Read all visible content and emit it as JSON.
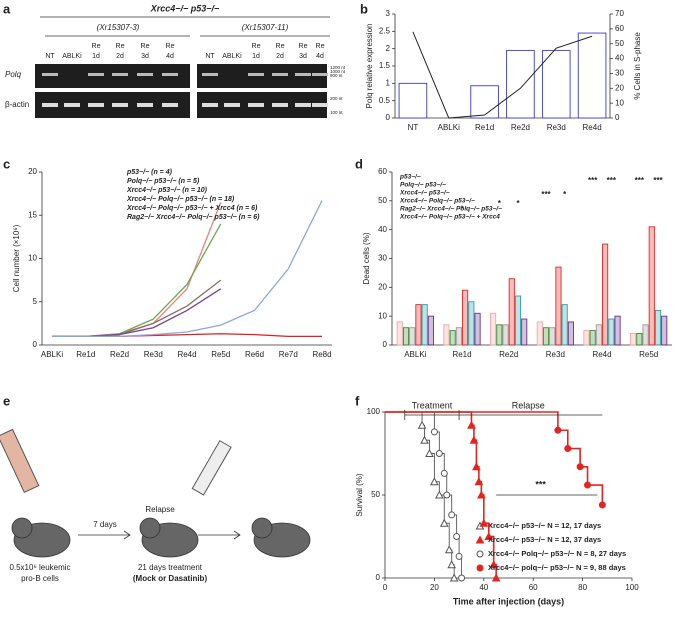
{
  "panel_labels": [
    "a",
    "b",
    "c",
    "d",
    "e",
    "f"
  ],
  "gel": {
    "title": "Xrcc4−/− p53−/−",
    "groups": [
      "(Xr15307-3)",
      "(Xr15307-11)"
    ],
    "lanes": [
      [
        "NT"
      ],
      [
        "ABLKi"
      ],
      [
        "Re",
        "1d"
      ],
      [
        "Re",
        "2d"
      ],
      [
        "Re",
        "3d"
      ],
      [
        "Re",
        "4d"
      ],
      [
        "NT"
      ],
      [
        "ABLKi"
      ],
      [
        "Re",
        "1d"
      ],
      [
        "Re",
        "2d"
      ],
      [
        "Re",
        "3d"
      ],
      [
        "Re",
        "4d"
      ]
    ],
    "rows": [
      "Polq",
      "β-actin"
    ],
    "markers": [
      "1200 nt",
      "1000 nt",
      "900 nt",
      "200 nt",
      "100 nt"
    ]
  },
  "diagram": {
    "texts": [
      "7 days",
      "Relapse",
      "0.5x10⁶ leukemic",
      "pro-B cells",
      "21 days treatment",
      "(Mock or Dasatinib)"
    ]
  },
  "chart_data": [
    {
      "type": "bar",
      "categories": [
        "NT",
        "ABLKi",
        "Re1d",
        "Re2d",
        "Re3d",
        "Re4d"
      ],
      "ylabel": "Polq relative expression",
      "y2label": "% Cells in S-phase",
      "ylim": [
        0,
        3
      ],
      "yticks": [
        0,
        0.5,
        1,
        1.5,
        2,
        2.5,
        3
      ],
      "y2lim": [
        0,
        70
      ],
      "y2ticks": [
        0,
        10,
        20,
        30,
        40,
        50,
        60,
        70
      ],
      "series": [
        {
          "color": "#3a3ad0",
          "values": [
            1.0,
            0,
            0.93,
            1.95,
            1.95,
            2.45
          ]
        },
        {
          "color": "#222222",
          "axis": "y2",
          "values": [
            58,
            0,
            2,
            20,
            47,
            55
          ]
        }
      ]
    },
    {
      "type": "line",
      "categories": [
        "ABLKi",
        "Re1d",
        "Re2d",
        "Re3d",
        "Re4d",
        "Re5d",
        "Re6d",
        "Re7d",
        "Re8d"
      ],
      "ylabel": "Cell number (×10⁶)",
      "ylim": [
        0,
        20
      ],
      "yticks": [
        0,
        5,
        10,
        15,
        20
      ],
      "series": [
        {
          "name": "p53−/− (n = 4)",
          "color": "#f08080",
          "values": [
            1,
            1,
            1.3,
            2.5,
            6.5,
            16.5,
            null,
            null,
            null
          ]
        },
        {
          "name": "Polq−/− p53−/− (n = 5)",
          "color": "#6aa84f",
          "values": [
            1,
            1,
            1.3,
            3,
            7,
            14,
            null,
            null,
            null
          ]
        },
        {
          "name": "Xrcc4−/− p53−/− (n = 10)",
          "color": "#8b6f5e",
          "values": [
            1,
            1,
            1.2,
            2.5,
            4.5,
            7.5,
            null,
            null,
            null
          ]
        },
        {
          "name": "Xrcc4−/− Polq−/− p53−/− (n = 18)",
          "color": "#e02020",
          "values": [
            1,
            1,
            1,
            1.1,
            1.2,
            1.3,
            1.2,
            1.0,
            1.0
          ]
        },
        {
          "name": "Xrcc4−/− Polq−/− p53−/− + Xrcc4 (n = 6)",
          "color": "#7b3f98",
          "values": [
            1,
            1,
            1.2,
            2,
            4,
            6.5,
            null,
            null,
            null
          ]
        },
        {
          "name": "Rag2−/− Xrcc4−/− Polq−/− p53−/− (n = 6)",
          "color": "#8aa8e0",
          "values": [
            1,
            1,
            1,
            1.2,
            1.5,
            2.3,
            4,
            8.8,
            16.7
          ]
        }
      ]
    },
    {
      "type": "bar",
      "categories": [
        "ABLKi",
        "Re1d",
        "Re2d",
        "Re3d",
        "Re4d",
        "Re5d"
      ],
      "ylabel": "Dead cells (%)",
      "ylim": [
        0,
        60
      ],
      "yticks": [
        0,
        10,
        20,
        30,
        40,
        50,
        60
      ],
      "annotations": [
        "*",
        "*",
        "*",
        "***",
        "*",
        "***",
        "***",
        "***",
        "***"
      ],
      "series": [
        {
          "name": "p53−/−",
          "color": "#f4a6a6",
          "values": [
            8,
            7,
            11,
            8,
            5,
            4
          ]
        },
        {
          "name": "Polq−/− p53−/−",
          "color": "#3a8a2a",
          "values": [
            6,
            5,
            7,
            6,
            5,
            4
          ]
        },
        {
          "name": "Xrcc4−/− p53−/−",
          "color": "#999999",
          "values": [
            6,
            6,
            7,
            6,
            7,
            7
          ]
        },
        {
          "name": "Xrcc4−/− Polq−/− p53−/−",
          "color": "#e8231e",
          "values": [
            14,
            19,
            23,
            27,
            35,
            41
          ]
        },
        {
          "name": "Rag2−/− Xrcc4−/− Polq−/− p53−/−",
          "color": "#2aa0a8",
          "values": [
            14,
            15,
            17,
            14,
            9,
            12
          ]
        },
        {
          "name": "Xrcc4−/− Polq−/− p53−/− + Xrcc4",
          "color": "#6b2e8a",
          "values": [
            10,
            11,
            9,
            8,
            10,
            10
          ]
        }
      ]
    },
    {
      "type": "step",
      "xlabel": "Time after injection (days)",
      "ylabel": "Survival (%)",
      "xlim": [
        0,
        100
      ],
      "xticks": [
        0,
        20,
        40,
        60,
        80,
        100
      ],
      "ylim": [
        0,
        100
      ],
      "yticks": [
        0,
        50,
        100
      ],
      "annotations": [
        "Treatment",
        "Relapse",
        "***"
      ],
      "series": [
        {
          "name": "Xrcc4−/− p53−/− N = 12, 17 days",
          "color": "#555555",
          "marker": "triangle",
          "filled": false,
          "x": [
            0,
            15,
            16,
            18,
            20,
            22,
            24,
            26,
            27,
            28
          ],
          "y": [
            100,
            92,
            83,
            75,
            58,
            50,
            33,
            17,
            8,
            0
          ]
        },
        {
          "name": "Xrcc4−/− p53−/− N = 12, 37 days",
          "color": "#e8231e",
          "marker": "triangle",
          "filled": true,
          "x": [
            0,
            35,
            36,
            37,
            38,
            39,
            40,
            42,
            44,
            45
          ],
          "y": [
            100,
            92,
            83,
            67,
            58,
            50,
            33,
            25,
            8,
            0
          ]
        },
        {
          "name": "Xrcc4−/− Polq−/− p53−/− N = 8, 27 days",
          "color": "#555555",
          "marker": "circle",
          "filled": false,
          "x": [
            0,
            20,
            22,
            24,
            25,
            27,
            29,
            30,
            31
          ],
          "y": [
            100,
            88,
            75,
            63,
            50,
            38,
            25,
            13,
            0
          ]
        },
        {
          "name": "Xrcc4−/− polq−/− p53−/− N = 9, 88 days",
          "color": "#e8231e",
          "marker": "circle",
          "filled": true,
          "x": [
            0,
            70,
            74,
            79,
            82,
            88
          ],
          "y": [
            100,
            89,
            78,
            67,
            56,
            44
          ]
        }
      ]
    }
  ]
}
